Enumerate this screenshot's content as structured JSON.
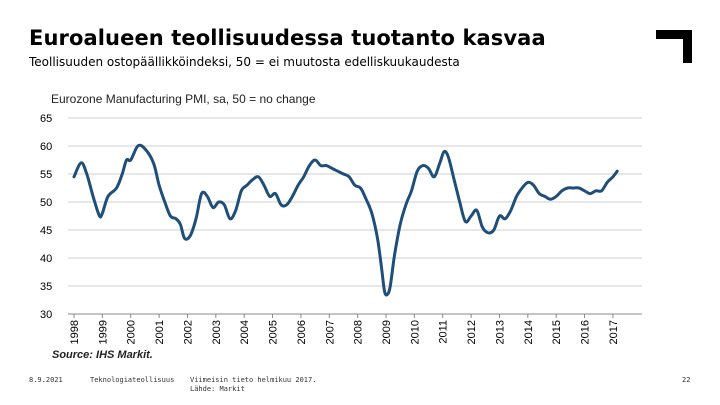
{
  "slide": {
    "title": "Euroalueen teollisuudessa tuotanto kasvaa",
    "subtitle": "Teollisuuden ostopäällikköindeksi, 50 = ei muutosta edelliskuukaudesta"
  },
  "footer": {
    "date": "8.9.2021",
    "organization": "Teknologiateollisuus",
    "note_line1": "Viimeisin tieto helmikuu 2017.",
    "note_line2": "Lähde: Markit",
    "page_number": "22"
  },
  "colors": {
    "series": "#1f4e79",
    "grid": "#cfcfcf",
    "text": "#000000"
  },
  "chart_data": {
    "type": "line",
    "title": "Eurozone Manufacturing PMI, sa, 50 = no change",
    "source": "Source: IHS Markit.",
    "xlabel": "",
    "ylabel": "",
    "ylim": [
      30,
      65
    ],
    "yticks": [
      65,
      60,
      55,
      50,
      45,
      40,
      35,
      30
    ],
    "xticks": [
      "1998",
      "1999",
      "2000",
      "2001",
      "2002",
      "2003",
      "2004",
      "2005",
      "2006",
      "2007",
      "2008",
      "2009",
      "2010",
      "2011",
      "2012",
      "2013",
      "2014",
      "2015",
      "2016",
      "2017"
    ],
    "xlim": [
      1998.0,
      2017.25
    ],
    "grid": true,
    "series": [
      {
        "name": "Eurozone Manufacturing PMI",
        "x": [
          1998.0,
          1998.25,
          1998.45,
          1998.7,
          1998.9,
          1999.0,
          1999.2,
          1999.5,
          1999.7,
          1999.85,
          2000.0,
          2000.25,
          2000.5,
          2000.8,
          2001.0,
          2001.2,
          2001.4,
          2001.6,
          2001.75,
          2001.9,
          2002.1,
          2002.3,
          2002.5,
          2002.7,
          2002.9,
          2003.1,
          2003.3,
          2003.5,
          2003.7,
          2003.9,
          2004.1,
          2004.3,
          2004.5,
          2004.7,
          2004.9,
          2005.1,
          2005.3,
          2005.5,
          2005.7,
          2005.9,
          2006.1,
          2006.3,
          2006.5,
          2006.7,
          2006.9,
          2007.1,
          2007.3,
          2007.5,
          2007.7,
          2007.9,
          2008.1,
          2008.3,
          2008.5,
          2008.7,
          2008.85,
          2008.95,
          2009.05,
          2009.15,
          2009.3,
          2009.5,
          2009.7,
          2009.9,
          2010.1,
          2010.3,
          2010.5,
          2010.7,
          2010.9,
          2011.05,
          2011.2,
          2011.4,
          2011.6,
          2011.8,
          2012.0,
          2012.2,
          2012.4,
          2012.6,
          2012.8,
          2013.0,
          2013.2,
          2013.4,
          2013.6,
          2013.8,
          2014.0,
          2014.2,
          2014.4,
          2014.6,
          2014.8,
          2015.0,
          2015.2,
          2015.4,
          2015.6,
          2015.8,
          2016.0,
          2016.2,
          2016.4,
          2016.6,
          2016.8,
          2017.0,
          2017.15
        ],
        "values": [
          54.5,
          57.0,
          55.0,
          50.5,
          47.5,
          48.0,
          51.0,
          52.5,
          55.0,
          57.5,
          57.5,
          60.0,
          59.5,
          57.0,
          53.0,
          50.0,
          47.5,
          47.0,
          46.0,
          43.5,
          44.0,
          47.0,
          51.5,
          51.0,
          49.0,
          50.0,
          49.5,
          47.0,
          48.5,
          52.0,
          53.0,
          54.0,
          54.5,
          53.0,
          51.0,
          51.5,
          49.5,
          49.5,
          51.0,
          53.0,
          54.5,
          56.5,
          57.5,
          56.5,
          56.5,
          56.0,
          55.5,
          55.0,
          54.5,
          53.0,
          52.5,
          50.5,
          48.0,
          43.5,
          38.0,
          34.0,
          33.5,
          35.0,
          40.5,
          46.0,
          49.5,
          52.0,
          55.5,
          56.5,
          56.0,
          54.5,
          57.0,
          59.0,
          58.0,
          54.0,
          50.0,
          46.5,
          47.5,
          48.5,
          45.5,
          44.5,
          45.0,
          47.5,
          47.0,
          48.5,
          51.0,
          52.5,
          53.5,
          53.0,
          51.5,
          51.0,
          50.5,
          51.0,
          52.0,
          52.5,
          52.5,
          52.5,
          52.0,
          51.5,
          52.0,
          52.0,
          53.5,
          54.5,
          55.5
        ]
      }
    ]
  }
}
